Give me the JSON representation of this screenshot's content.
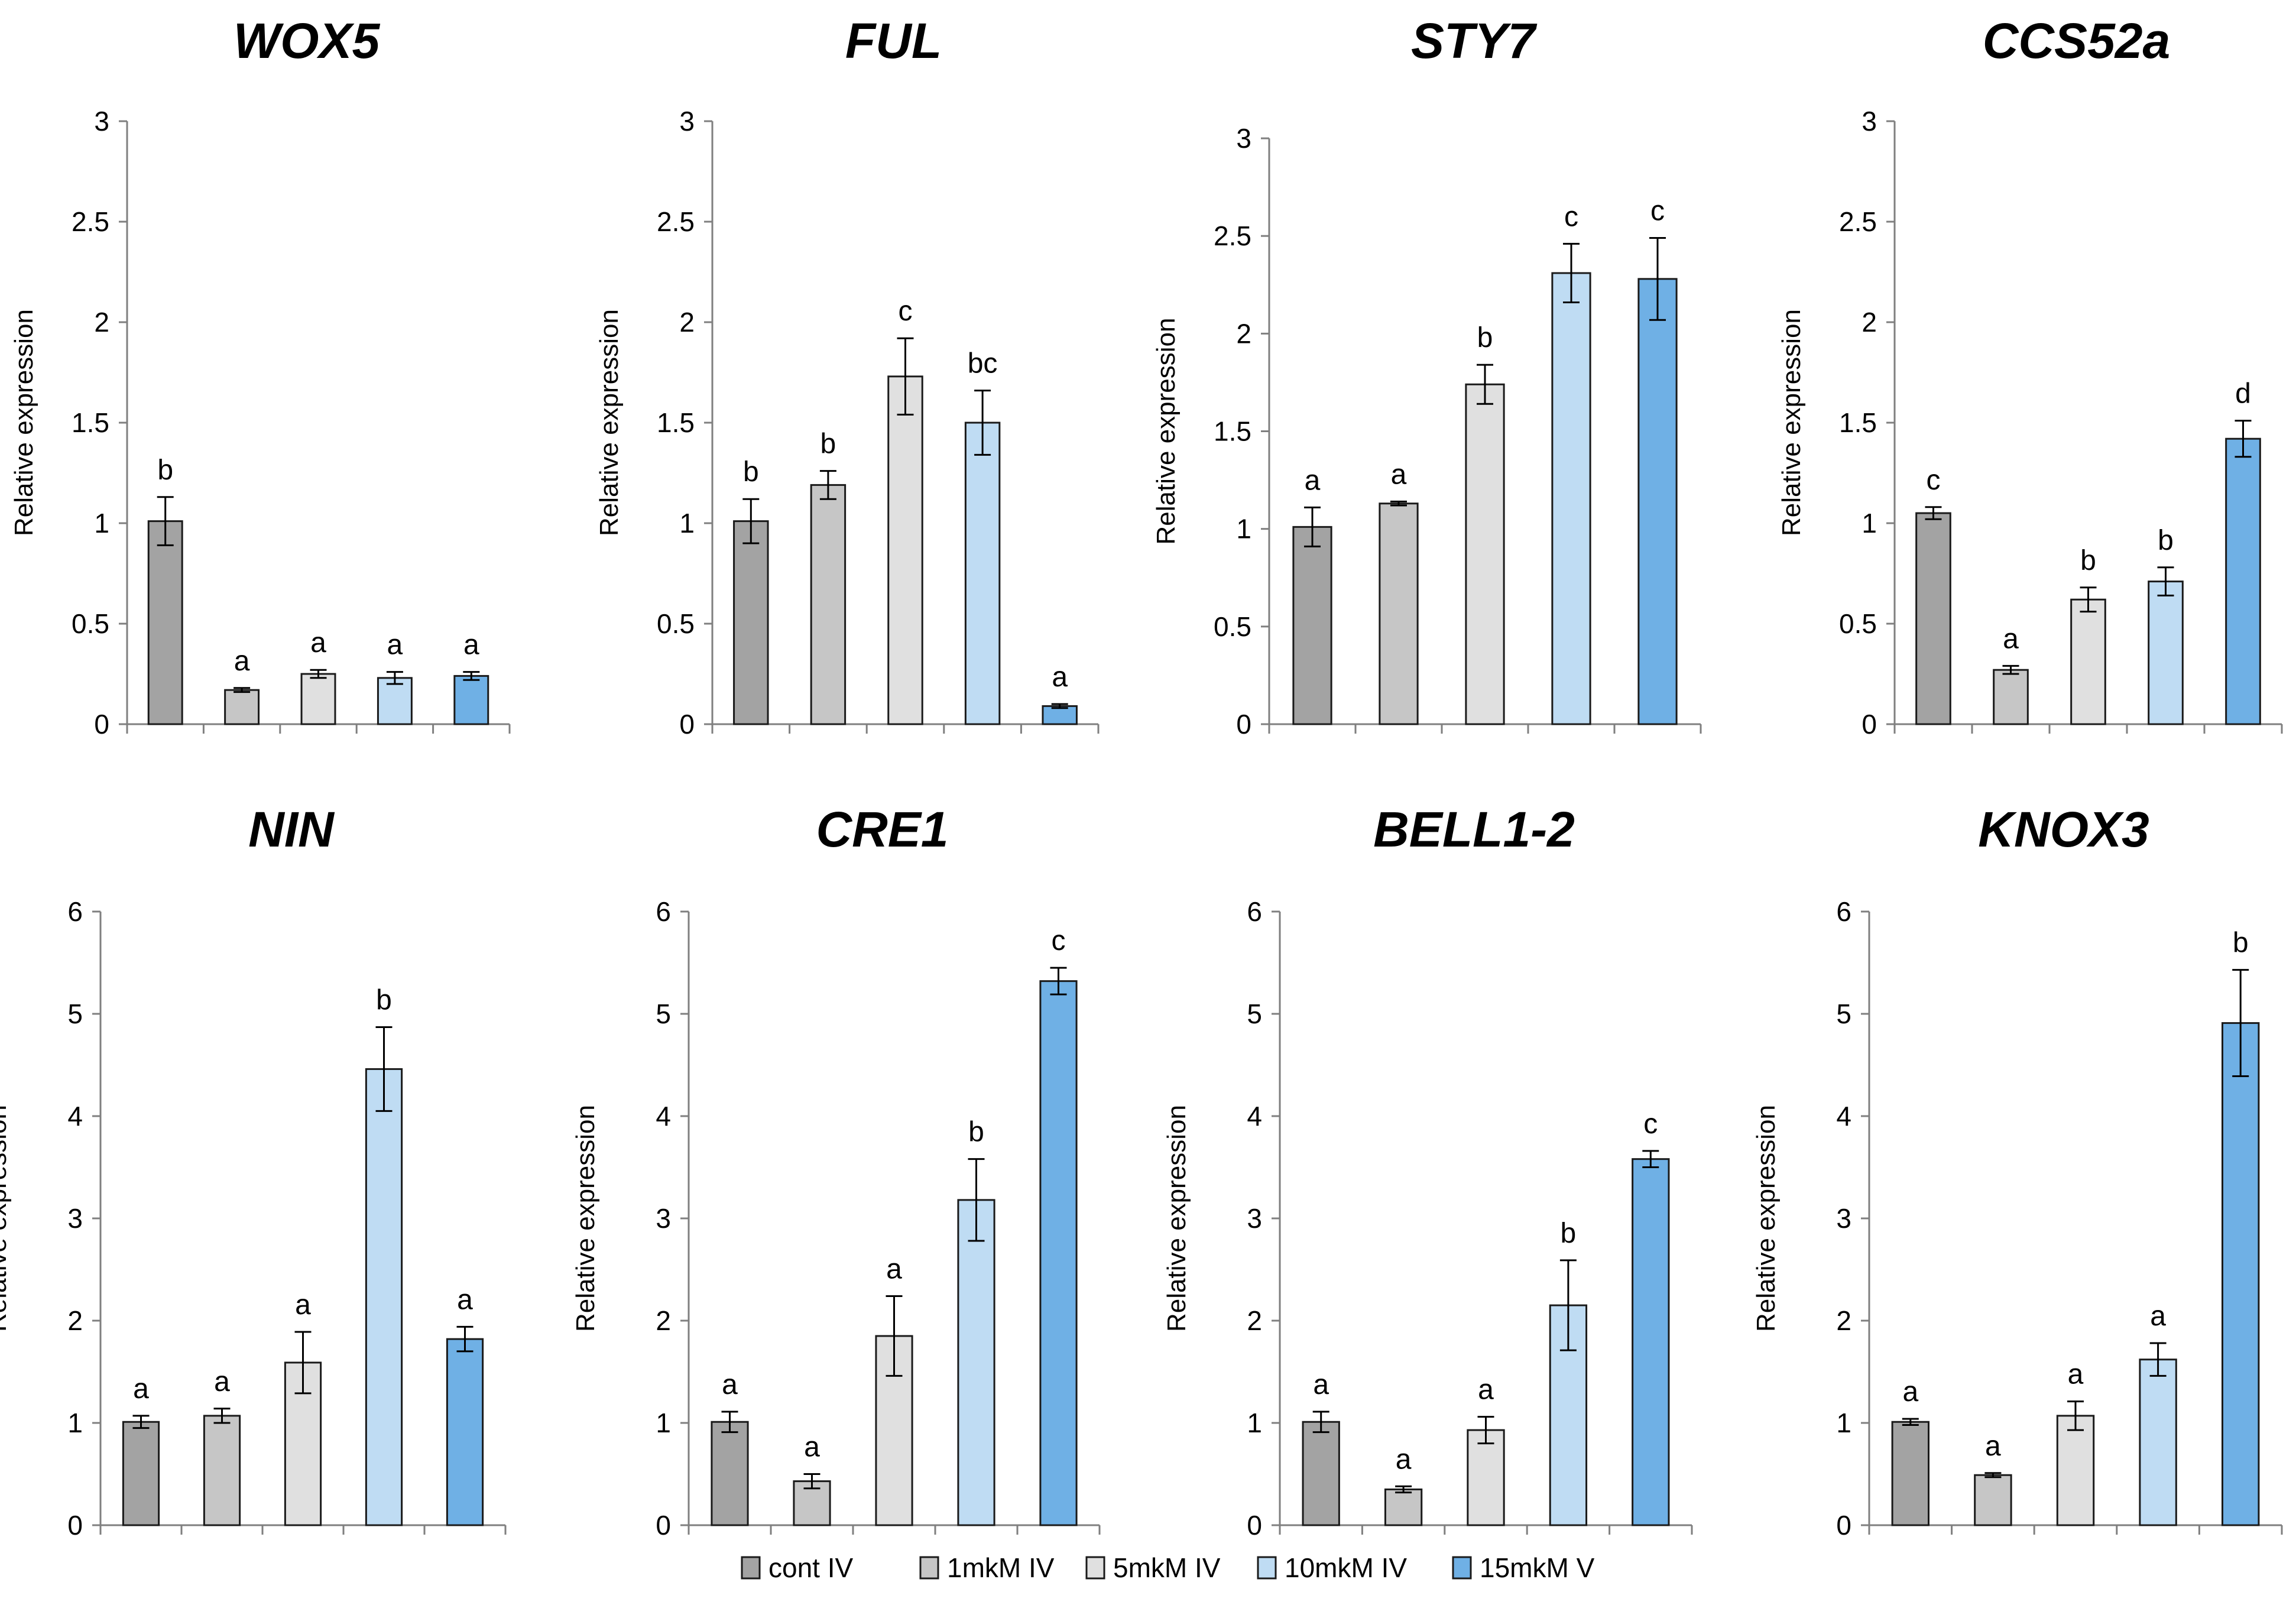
{
  "legend": [
    {
      "label": "cont IV",
      "color": "#a3a3a3"
    },
    {
      "label": "1mkM IV",
      "color": "#c6c6c6"
    },
    {
      "label": "5mkM IV",
      "color": "#e0e0e0"
    },
    {
      "label": "10mkM IV",
      "color": "#bfdcf3"
    },
    {
      "label": "15mkM V",
      "color": "#6fb0e5"
    }
  ],
  "chart_data": [
    {
      "type": "bar",
      "title": "WOX5",
      "ylabel": "Relative expression",
      "ylim": [
        0,
        3
      ],
      "yticks": [
        "0",
        "0.5",
        "1",
        "1.5",
        "2",
        "2.5",
        "3"
      ],
      "categories": [
        "cont IV",
        "1mkM IV",
        "5mkM IV",
        "10mkM IV",
        "15mkM V"
      ],
      "values": [
        1.01,
        0.17,
        0.25,
        0.23,
        0.24
      ],
      "errors": [
        0.12,
        0.01,
        0.02,
        0.03,
        0.02
      ],
      "letters": [
        "b",
        "a",
        "a",
        "a",
        "a"
      ]
    },
    {
      "type": "bar",
      "title": "FUL",
      "ylabel": "Relative expression",
      "ylim": [
        0,
        3
      ],
      "yticks": [
        "0",
        "0.5",
        "1",
        "1.5",
        "2",
        "2.5",
        "3"
      ],
      "categories": [
        "cont IV",
        "1mkM IV",
        "5mkM IV",
        "10mkM IV",
        "15mkM V"
      ],
      "values": [
        1.01,
        1.19,
        1.73,
        1.5,
        0.09
      ],
      "errors": [
        0.11,
        0.07,
        0.19,
        0.16,
        0.01
      ],
      "letters": [
        "b",
        "b",
        "c",
        "bc",
        "a"
      ]
    },
    {
      "type": "bar",
      "title": "STY7",
      "ylabel": "Relative expression",
      "ylim": [
        0,
        3
      ],
      "yticks": [
        "0",
        "0.5",
        "1",
        "1.5",
        "2",
        "2.5",
        "3"
      ],
      "categories": [
        "cont IV",
        "1mkM IV",
        "5mkM IV",
        "10mkM IV",
        "15mkM V"
      ],
      "values": [
        1.01,
        1.13,
        1.74,
        2.31,
        2.28
      ],
      "errors": [
        0.1,
        0.01,
        0.1,
        0.15,
        0.21
      ],
      "letters": [
        "a",
        "a",
        "b",
        "c",
        "c"
      ]
    },
    {
      "type": "bar",
      "title": "CCS52a",
      "ylabel": "Relative expression",
      "ylim": [
        0,
        3
      ],
      "yticks": [
        "0",
        "0.5",
        "1",
        "1.5",
        "2",
        "2.5",
        "3"
      ],
      "categories": [
        "cont IV",
        "1mkM IV",
        "5mkM IV",
        "10mkM IV",
        "15mkM V"
      ],
      "values": [
        1.05,
        0.27,
        0.62,
        0.71,
        1.42
      ],
      "errors": [
        0.03,
        0.02,
        0.06,
        0.07,
        0.09
      ],
      "letters": [
        "c",
        "a",
        "b",
        "b",
        "d"
      ]
    },
    {
      "type": "bar",
      "title": "NIN",
      "ylabel": "Relative expression",
      "ylim": [
        0,
        6
      ],
      "yticks": [
        "0",
        "1",
        "2",
        "3",
        "4",
        "5",
        "6"
      ],
      "categories": [
        "cont IV",
        "1mkM IV",
        "5mkM IV",
        "10mkM IV",
        "15mkM V"
      ],
      "values": [
        1.01,
        1.07,
        1.59,
        4.46,
        1.82
      ],
      "errors": [
        0.06,
        0.07,
        0.3,
        0.41,
        0.12
      ],
      "letters": [
        "a",
        "a",
        "a",
        "b",
        "a"
      ]
    },
    {
      "type": "bar",
      "title": "CRE1",
      "ylabel": "Relative expression",
      "ylim": [
        0,
        6
      ],
      "yticks": [
        "0",
        "1",
        "2",
        "3",
        "4",
        "5",
        "6"
      ],
      "categories": [
        "cont IV",
        "1mkM IV",
        "5mkM IV",
        "10mkM IV",
        "15mkM V"
      ],
      "values": [
        1.01,
        0.43,
        1.85,
        3.18,
        5.32
      ],
      "errors": [
        0.1,
        0.07,
        0.39,
        0.4,
        0.13
      ],
      "letters": [
        "a",
        "a",
        "a",
        "b",
        "c"
      ]
    },
    {
      "type": "bar",
      "title": "BELL1-2",
      "ylabel": "Relative expression",
      "ylim": [
        0,
        6
      ],
      "yticks": [
        "0",
        "1",
        "2",
        "3",
        "4",
        "5",
        "6"
      ],
      "categories": [
        "cont IV",
        "1mkM IV",
        "5mkM IV",
        "10mkM IV",
        "15mkM V"
      ],
      "values": [
        1.01,
        0.35,
        0.93,
        2.15,
        3.58
      ],
      "errors": [
        0.1,
        0.03,
        0.13,
        0.44,
        0.08
      ],
      "letters": [
        "a",
        "a",
        "a",
        "b",
        "c"
      ]
    },
    {
      "type": "bar",
      "title": "KNOX3",
      "ylabel": "Relative expression",
      "ylim": [
        0,
        6
      ],
      "yticks": [
        "0",
        "1",
        "2",
        "3",
        "4",
        "5",
        "6"
      ],
      "categories": [
        "cont IV",
        "1mkM IV",
        "5mkM IV",
        "10mkM IV",
        "15mkM V"
      ],
      "values": [
        1.01,
        0.49,
        1.07,
        1.62,
        4.91
      ],
      "errors": [
        0.03,
        0.02,
        0.14,
        0.16,
        0.52
      ],
      "letters": [
        "a",
        "a",
        "a",
        "a",
        "b"
      ]
    }
  ]
}
